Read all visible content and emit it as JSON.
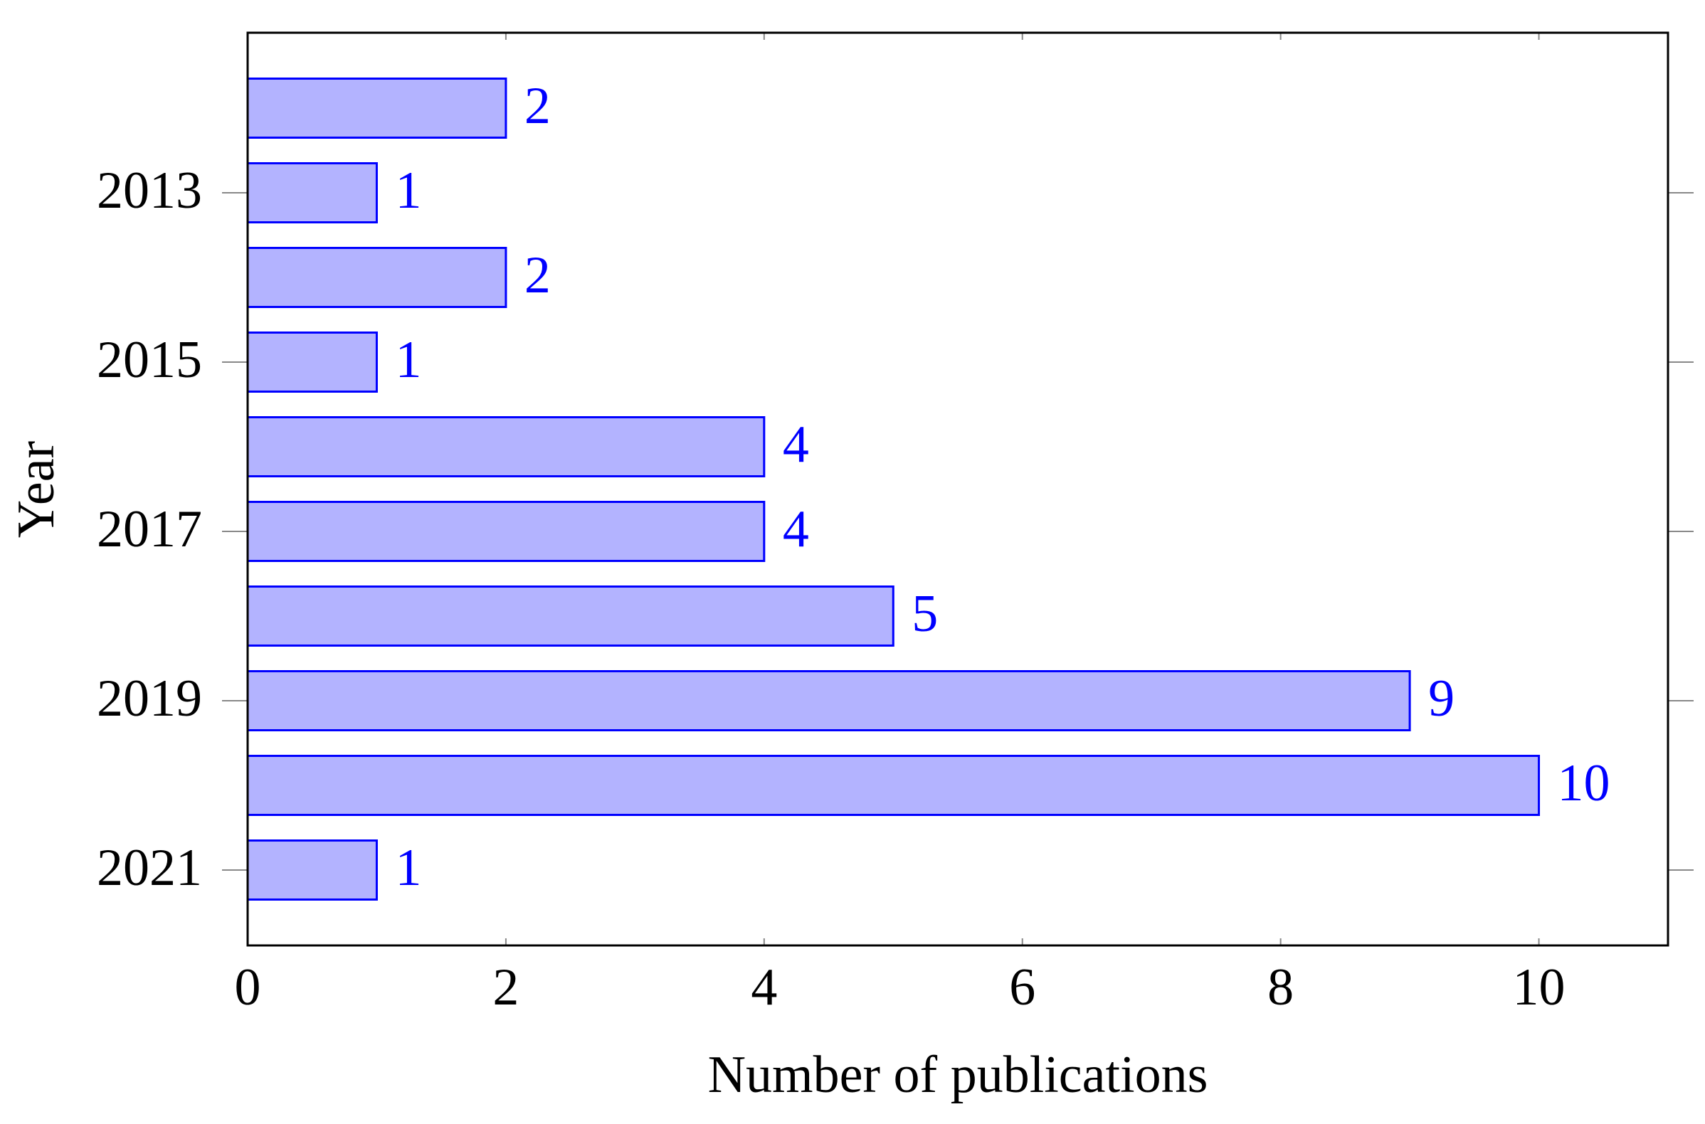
{
  "chart_data": {
    "type": "hbar",
    "xlabel": "Number of publications",
    "ylabel": "Year",
    "categories": [
      null,
      "2013",
      null,
      "2015",
      null,
      "2017",
      null,
      "2019",
      null,
      "2021"
    ],
    "values": [
      2,
      1,
      2,
      1,
      4,
      4,
      5,
      9,
      10,
      1
    ],
    "color": "#b3b3ff",
    "edge_color": "#0000ff",
    "label_color": "#0000ff",
    "xlim": [
      0,
      11
    ],
    "xticks": [
      0,
      2,
      4,
      6,
      8,
      10
    ],
    "grid": false
  }
}
